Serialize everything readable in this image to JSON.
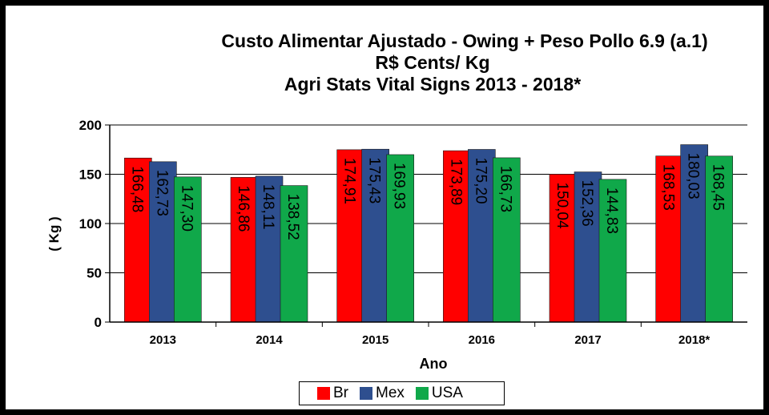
{
  "chart_data": {
    "type": "bar",
    "title_lines": [
      "Custo Alimentar Ajustado - Owing + Peso Pollo 6.9 (a.1)",
      "R$ Cents/ Kg",
      "Agri Stats Vital Signs 2013 - 2018*"
    ],
    "xlabel": "Ano",
    "ylabel": "( Kg )",
    "ylim": [
      0,
      200
    ],
    "yticks": [
      0,
      50,
      100,
      150,
      200
    ],
    "grid": true,
    "legend_position": "bottom-center",
    "categories": [
      "2013",
      "2014",
      "2015",
      "2016",
      "2017",
      "2018*"
    ],
    "series": [
      {
        "name": "Br",
        "color": "#ff0000",
        "values": [
          166.48,
          146.86,
          174.91,
          173.89,
          150.04,
          168.53
        ],
        "labels": [
          "166,48",
          "146,86",
          "174,91",
          "173,89",
          "150,04",
          "168,53"
        ]
      },
      {
        "name": "Mex",
        "color": "#2e4f8f",
        "values": [
          162.73,
          148.11,
          175.43,
          175.2,
          152.36,
          180.03
        ],
        "labels": [
          "162,73",
          "148,11",
          "175,43",
          "175,20",
          "152,36",
          "180,03"
        ]
      },
      {
        "name": "USA",
        "color": "#10a84a",
        "values": [
          147.3,
          138.52,
          169.93,
          166.73,
          144.83,
          168.45
        ],
        "labels": [
          "147,30",
          "138,52",
          "169,93",
          "166,73",
          "144,83",
          "168,45"
        ]
      }
    ]
  }
}
